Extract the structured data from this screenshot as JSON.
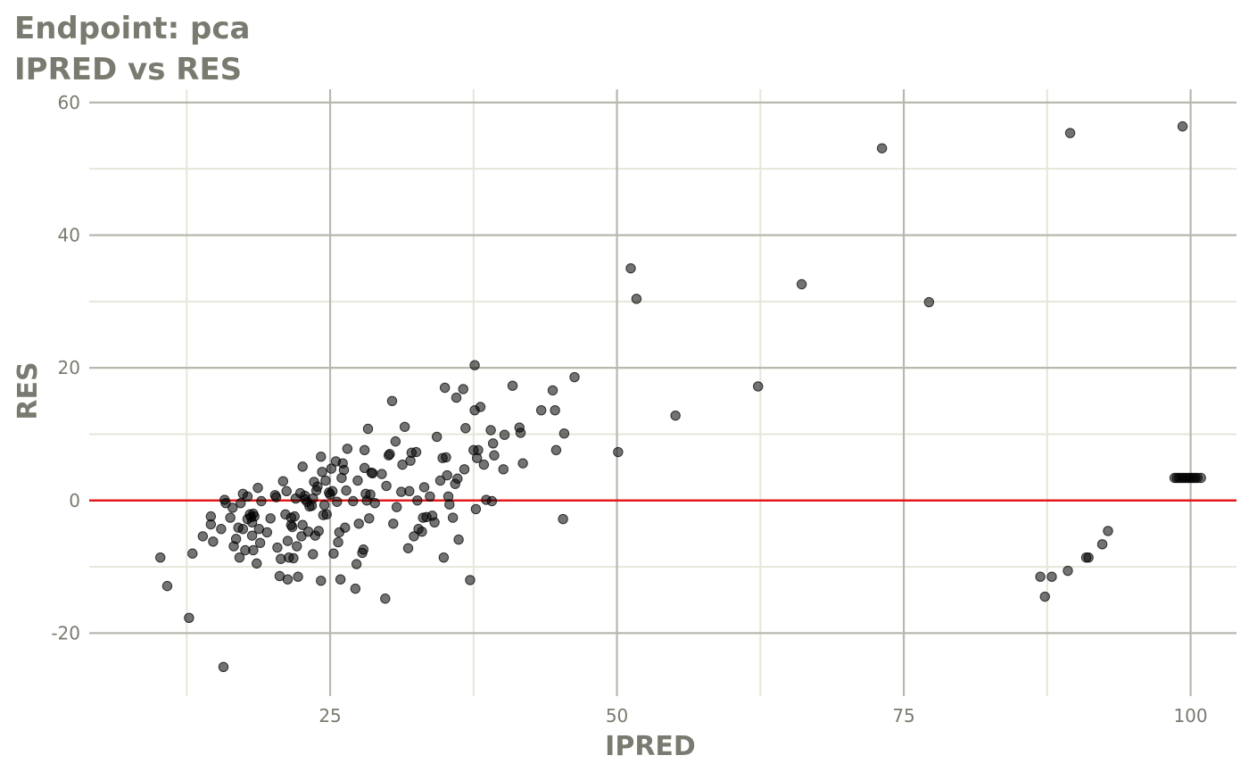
{
  "chart_data": {
    "type": "scatter",
    "title": "Endpoint:  pca",
    "subtitle": "IPRED vs RES",
    "xlabel": "IPRED",
    "ylabel": "RES",
    "xlim": [
      4,
      104
    ],
    "ylim": [
      -29.5,
      62
    ],
    "x_ticks": [
      25,
      50,
      75,
      100
    ],
    "x_tick_labels": [
      "25",
      "50",
      "75",
      "100"
    ],
    "y_ticks": [
      -20,
      0,
      20,
      40,
      60
    ],
    "y_tick_labels": [
      "-20",
      "0",
      "20",
      "40",
      "60"
    ],
    "grid": true,
    "reference_line": {
      "y": 0,
      "color": "#e31a1c"
    },
    "colors": {
      "points": "#000000",
      "grid_major": "#b8b8ae",
      "grid_minor": "#e6e6da",
      "text": "#7a7a70"
    },
    "points": [
      [
        10.2,
        -8.6
      ],
      [
        10.8,
        -12.9
      ],
      [
        13,
        -8
      ],
      [
        12.7,
        -17.7
      ],
      [
        13.9,
        -5.4
      ],
      [
        14.6,
        -2.4
      ],
      [
        14.6,
        -3.6
      ],
      [
        14.8,
        -6.2
      ],
      [
        15.5,
        -4.3
      ],
      [
        15.7,
        -25.1
      ],
      [
        15.8,
        0.1
      ],
      [
        15.9,
        -0.4
      ],
      [
        16.3,
        -2.6
      ],
      [
        16.5,
        -1.1
      ],
      [
        16.6,
        -6.9
      ],
      [
        16.8,
        -5.8
      ],
      [
        17,
        -4.1
      ],
      [
        17.1,
        -8.6
      ],
      [
        17.2,
        -0.4
      ],
      [
        17.4,
        1.0
      ],
      [
        17.4,
        -4.3
      ],
      [
        17.6,
        -7.5
      ],
      [
        17.8,
        0.6
      ],
      [
        17.8,
        -2.8
      ],
      [
        18,
        -2.1
      ],
      [
        18.1,
        -2.5
      ],
      [
        18.2,
        -3.3
      ],
      [
        18.2,
        -5.3
      ],
      [
        18.3,
        -2.0
      ],
      [
        18.3,
        -7.5
      ],
      [
        18.4,
        -2.4
      ],
      [
        18.6,
        -9.5
      ],
      [
        18.7,
        1.9
      ],
      [
        18.8,
        -4.3
      ],
      [
        18.9,
        -6.4
      ],
      [
        19,
        -0.1
      ],
      [
        19.5,
        -4.8
      ],
      [
        19.8,
        -2.7
      ],
      [
        20.2,
        0.8
      ],
      [
        20.3,
        0.5
      ],
      [
        20.4,
        -7.1
      ],
      [
        20.6,
        -11.4
      ],
      [
        20.7,
        -8.8
      ],
      [
        20.9,
        2.9
      ],
      [
        21.1,
        -2.1
      ],
      [
        21.2,
        1.4
      ],
      [
        21.3,
        -6.1
      ],
      [
        21.3,
        -11.9
      ],
      [
        21.4,
        -8.6
      ],
      [
        21.6,
        -2.6
      ],
      [
        21.6,
        -3.7
      ],
      [
        21.7,
        -4.0
      ],
      [
        21.8,
        -8.7
      ],
      [
        21.9,
        -2.4
      ],
      [
        22,
        0.3
      ],
      [
        22.1,
        -6.9
      ],
      [
        22.2,
        -11.5
      ],
      [
        22.4,
        1.1
      ],
      [
        22.5,
        -5.4
      ],
      [
        22.6,
        -3.7
      ],
      [
        22.6,
        5.1
      ],
      [
        22.8,
        0.7
      ],
      [
        22.8,
        0.2
      ],
      [
        23,
        -0.2
      ],
      [
        23.1,
        -4.7
      ],
      [
        23.2,
        -0.9
      ],
      [
        23.4,
        -0.8
      ],
      [
        23.5,
        0.3
      ],
      [
        23.5,
        -8.1
      ],
      [
        23.6,
        2.8
      ],
      [
        23.7,
        -5.3
      ],
      [
        23.8,
        1.5
      ],
      [
        23.9,
        2.1
      ],
      [
        24,
        -4.6
      ],
      [
        24.2,
        6.6
      ],
      [
        24.2,
        -12.1
      ],
      [
        24.3,
        4.3
      ],
      [
        24.4,
        -2.2
      ],
      [
        24.5,
        -0.7
      ],
      [
        24.6,
        3.0
      ],
      [
        24.7,
        -2.1
      ],
      [
        24.9,
        1.2
      ],
      [
        25,
        0.9
      ],
      [
        25.1,
        4.8
      ],
      [
        25.2,
        1.4
      ],
      [
        25.3,
        -8.0
      ],
      [
        25.5,
        5.9
      ],
      [
        25.6,
        -0.2
      ],
      [
        25.7,
        -6.3
      ],
      [
        25.8,
        -4.8
      ],
      [
        25.9,
        -11.9
      ],
      [
        26,
        3.4
      ],
      [
        26.1,
        5.6
      ],
      [
        26.2,
        4.6
      ],
      [
        26.3,
        -4.1
      ],
      [
        26.4,
        1.5
      ],
      [
        26.5,
        7.8
      ],
      [
        27,
        -0.1
      ],
      [
        27.2,
        -13.3
      ],
      [
        27.3,
        -9.6
      ],
      [
        27.4,
        3.0
      ],
      [
        27.5,
        -3.5
      ],
      [
        27.8,
        -7.9
      ],
      [
        27.9,
        -7.4
      ],
      [
        28,
        7.6
      ],
      [
        28,
        4.9
      ],
      [
        28.1,
        1.0
      ],
      [
        28.2,
        0.0
      ],
      [
        28.3,
        10.8
      ],
      [
        28.4,
        -2.7
      ],
      [
        28.5,
        0.9
      ],
      [
        28.6,
        4.2
      ],
      [
        28.7,
        4.1
      ],
      [
        28.9,
        -0.4
      ],
      [
        29.5,
        4.0
      ],
      [
        29.8,
        -14.8
      ],
      [
        29.9,
        2.2
      ],
      [
        30.1,
        6.8
      ],
      [
        30.2,
        7.0
      ],
      [
        30.4,
        15.0
      ],
      [
        30.5,
        -3.5
      ],
      [
        30.7,
        8.9
      ],
      [
        30.8,
        -1.0
      ],
      [
        31.2,
        1.3
      ],
      [
        31.3,
        5.4
      ],
      [
        31.5,
        11.1
      ],
      [
        31.8,
        -7.2
      ],
      [
        31.9,
        1.4
      ],
      [
        32,
        6.0
      ],
      [
        32.1,
        7.2
      ],
      [
        32.3,
        -5.4
      ],
      [
        32.5,
        7.3
      ],
      [
        32.6,
        0.0
      ],
      [
        32.7,
        -4.3
      ],
      [
        33,
        -4.7
      ],
      [
        33.1,
        -2.6
      ],
      [
        33.2,
        2.0
      ],
      [
        33.4,
        -2.5
      ],
      [
        33.7,
        0.6
      ],
      [
        33.9,
        -2.3
      ],
      [
        34.1,
        -3.3
      ],
      [
        34.3,
        9.6
      ],
      [
        34.6,
        3.0
      ],
      [
        34.8,
        6.4
      ],
      [
        34.9,
        -8.6
      ],
      [
        35,
        17.0
      ],
      [
        35.1,
        6.5
      ],
      [
        35.2,
        3.8
      ],
      [
        35.3,
        0.6
      ],
      [
        35.4,
        -0.6
      ],
      [
        35.7,
        -2.6
      ],
      [
        35.9,
        2.5
      ],
      [
        36,
        15.5
      ],
      [
        36.1,
        3.3
      ],
      [
        36.2,
        -5.9
      ],
      [
        36.6,
        16.8
      ],
      [
        36.7,
        4.7
      ],
      [
        36.8,
        10.9
      ],
      [
        37.2,
        -12.0
      ],
      [
        37.5,
        7.6
      ],
      [
        37.6,
        20.4
      ],
      [
        37.6,
        13.6
      ],
      [
        37.7,
        -1.3
      ],
      [
        37.8,
        6.4
      ],
      [
        37.9,
        7.6
      ],
      [
        38.1,
        14.1
      ],
      [
        38.4,
        5.4
      ],
      [
        38.6,
        0.1
      ],
      [
        39,
        10.6
      ],
      [
        39.1,
        -0.1
      ],
      [
        39.2,
        8.6
      ],
      [
        39.3,
        6.8
      ],
      [
        40.1,
        4.7
      ],
      [
        40.2,
        9.9
      ],
      [
        40.9,
        17.3
      ],
      [
        41.5,
        11.0
      ],
      [
        41.6,
        10.2
      ],
      [
        41.8,
        5.6
      ],
      [
        43.4,
        13.6
      ],
      [
        44.4,
        16.6
      ],
      [
        44.6,
        13.6
      ],
      [
        44.7,
        7.6
      ],
      [
        45.3,
        -2.8
      ],
      [
        45.4,
        10.1
      ],
      [
        46.3,
        18.6
      ],
      [
        50.1,
        7.3
      ],
      [
        51.2,
        35.0
      ],
      [
        51.7,
        30.4
      ],
      [
        55.1,
        12.8
      ],
      [
        62.3,
        17.2
      ],
      [
        66.1,
        32.6
      ],
      [
        73.1,
        53.1
      ],
      [
        77.2,
        29.9
      ],
      [
        86.9,
        -11.5
      ],
      [
        87.3,
        -14.5
      ],
      [
        87.9,
        -11.5
      ],
      [
        89.3,
        -10.6
      ],
      [
        89.5,
        55.4
      ],
      [
        90.9,
        -8.6
      ],
      [
        91.1,
        -8.6
      ],
      [
        92.3,
        -6.6
      ],
      [
        92.8,
        -4.6
      ],
      [
        98.6,
        3.4
      ],
      [
        98.8,
        3.4
      ],
      [
        99,
        3.4
      ],
      [
        99.2,
        3.4
      ],
      [
        99.3,
        56.4
      ],
      [
        99.4,
        3.4
      ],
      [
        99.6,
        3.4
      ],
      [
        99.8,
        3.4
      ],
      [
        100,
        3.4
      ],
      [
        100.2,
        3.4
      ],
      [
        100.4,
        3.4
      ],
      [
        100.6,
        3.4
      ],
      [
        100.9,
        3.4
      ]
    ]
  }
}
